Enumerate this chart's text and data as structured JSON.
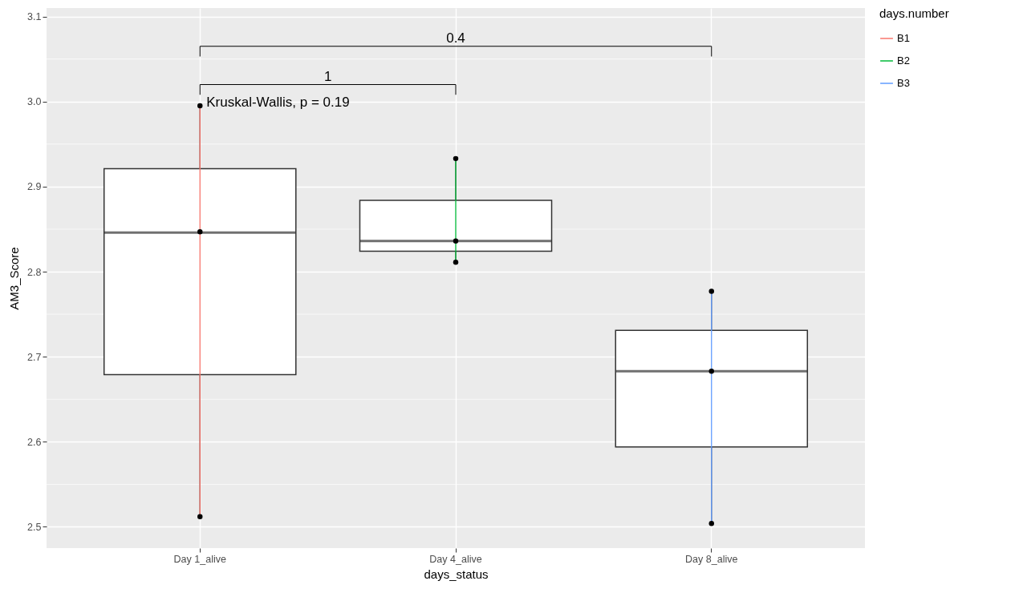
{
  "chart_data": {
    "type": "box",
    "xlabel": "days_status",
    "ylabel": "AM3_Score",
    "legend_title": "days.number",
    "legend": "right",
    "grid": true,
    "categories": [
      "Day 1_alive",
      "Day 4_alive",
      "Day 8_alive"
    ],
    "boxes": [
      {
        "low": 2.512,
        "q1": 2.679,
        "median": 2.846,
        "q3": 2.921,
        "high": 2.995
      },
      {
        "low": 2.811,
        "q1": 2.824,
        "median": 2.836,
        "q3": 2.884,
        "high": 2.933
      },
      {
        "low": 2.504,
        "q1": 2.594,
        "median": 2.683,
        "q3": 2.731,
        "high": 2.777
      }
    ],
    "ylim": [
      2.475,
      3.11
    ],
    "yticks": [
      2.5,
      2.6,
      2.7,
      2.8,
      2.9,
      {
        "value": 3.0,
        "label": "3.0"
      },
      3.1
    ],
    "series": [
      {
        "name": "B1",
        "type": "line",
        "color": "#f8766d",
        "x": [
          "Day 1_alive",
          "Day 1_alive",
          "Day 1_alive"
        ],
        "values": [
          2.512,
          2.847,
          2.995
        ]
      },
      {
        "name": "B2",
        "type": "line",
        "color": "#00ba38",
        "x": [
          "Day 4_alive",
          "Day 4_alive",
          "Day 4_alive"
        ],
        "values": [
          2.811,
          2.836,
          2.933
        ]
      },
      {
        "name": "B3",
        "type": "line",
        "color": "#619cff",
        "x": [
          "Day 8_alive",
          "Day 8_alive",
          "Day 8_alive"
        ],
        "values": [
          2.504,
          2.683,
          2.777
        ]
      },
      {
        "type": "scatter",
        "color": "#000000",
        "marker": "circle",
        "x": [
          "Day 1_alive",
          "Day 1_alive",
          "Day 1_alive",
          "Day 4_alive",
          "Day 4_alive",
          "Day 4_alive",
          "Day 8_alive",
          "Day 8_alive",
          "Day 8_alive"
        ],
        "values": [
          2.995,
          2.847,
          2.512,
          2.933,
          2.811,
          2.836,
          2.683,
          2.777,
          2.504
        ]
      }
    ],
    "annotations": [
      "0.4",
      "1",
      "Kruskal-Wallis, p = 0.19"
    ]
  }
}
